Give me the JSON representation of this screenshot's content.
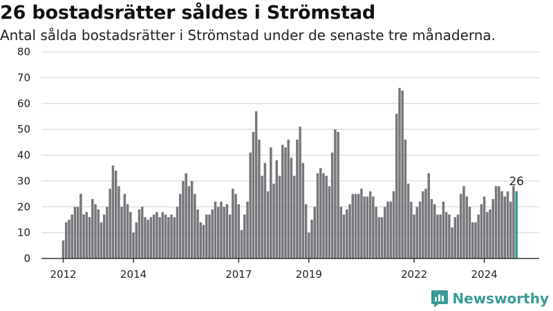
{
  "title": "26 bostadsrätter såldes i Strömstad",
  "subtitle": "Antal sålda bostadsrätter i Strömstad under de senaste tre månaderna.",
  "brand": {
    "name": "Newsworthy",
    "logo_icon": "newsworthy-logo-icon"
  },
  "colors": {
    "bar": "#77767b",
    "highlight": "#2e9a91",
    "grid": "#d9d9d9",
    "axis": "#333333",
    "brand": "#3a9b94"
  },
  "chart_data": {
    "type": "bar",
    "title": "",
    "xlabel": "",
    "ylabel": "",
    "ylim": [
      0,
      80
    ],
    "yticks": [
      "0",
      "10",
      "20",
      "30",
      "40",
      "50",
      "60",
      "70",
      "80"
    ],
    "xticks": [
      {
        "label": "2012",
        "x": 2012.0
      },
      {
        "label": "2014",
        "x": 2014.0
      },
      {
        "label": "2017",
        "x": 2017.0
      },
      {
        "label": "2019",
        "x": 2019.0
      },
      {
        "label": "2022",
        "x": 2022.0
      },
      {
        "label": "2024",
        "x": 2024.0
      }
    ],
    "grid": true,
    "start_year": 2012,
    "points_per_year": 12,
    "highlight_label": "26",
    "values": [
      7,
      14,
      15,
      17,
      20,
      20,
      25,
      17,
      18,
      16,
      23,
      21,
      19,
      14,
      17,
      20,
      27,
      36,
      34,
      28,
      20,
      25,
      21,
      18,
      10,
      14,
      19,
      20,
      16,
      15,
      16,
      17,
      18,
      16,
      18,
      17,
      16,
      17,
      16,
      20,
      25,
      30,
      33,
      28,
      30,
      25,
      19,
      14,
      13,
      17,
      17,
      19,
      22,
      20,
      22,
      20,
      21,
      17,
      27,
      25,
      21,
      11,
      17,
      22,
      41,
      49,
      57,
      46,
      32,
      37,
      26,
      43,
      29,
      38,
      32,
      44,
      43,
      46,
      39,
      32,
      46,
      51,
      37,
      21,
      10,
      15,
      20,
      33,
      35,
      33,
      32,
      28,
      41,
      50,
      49,
      20,
      17,
      19,
      21,
      25,
      25,
      25,
      27,
      24,
      24,
      26,
      24,
      20,
      16,
      16,
      20,
      22,
      22,
      26,
      56,
      66,
      65,
      46,
      29,
      22,
      17,
      20,
      22,
      26,
      27,
      33,
      23,
      21,
      17,
      17,
      22,
      18,
      17,
      12,
      16,
      17,
      25,
      28,
      24,
      20,
      14,
      14,
      17,
      21,
      24,
      18,
      19,
      23,
      28,
      28,
      26,
      24,
      26,
      22,
      28,
      26
    ]
  }
}
